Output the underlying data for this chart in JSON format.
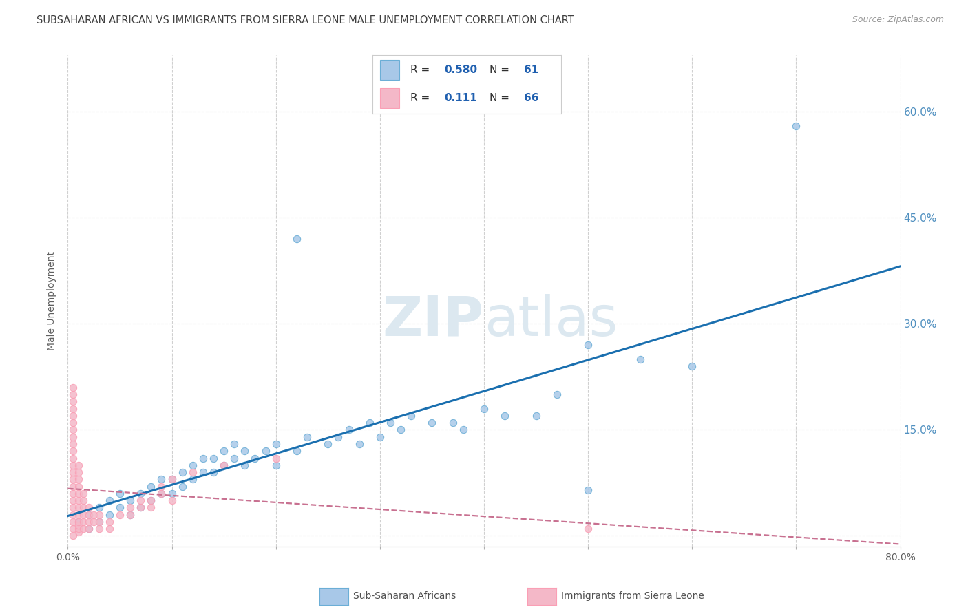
{
  "title": "SUBSAHARAN AFRICAN VS IMMIGRANTS FROM SIERRA LEONE MALE UNEMPLOYMENT CORRELATION CHART",
  "source": "Source: ZipAtlas.com",
  "ylabel": "Male Unemployment",
  "xlim": [
    0.0,
    0.8
  ],
  "ylim": [
    -0.015,
    0.68
  ],
  "yticks": [
    0.0,
    0.15,
    0.3,
    0.45,
    0.6
  ],
  "xticks": [
    0.0,
    0.1,
    0.2,
    0.3,
    0.4,
    0.5,
    0.6,
    0.7,
    0.8
  ],
  "blue_R": 0.58,
  "blue_N": 61,
  "pink_R": 0.111,
  "pink_N": 66,
  "blue_color": "#a8c8e8",
  "pink_color": "#f4b8c8",
  "blue_edge_color": "#6baed6",
  "pink_edge_color": "#fa9fb5",
  "blue_line_color": "#1a6faf",
  "pink_line_color": "#c87090",
  "watermark_color": "#dce8f0",
  "grid_color": "#d0d0d0",
  "background_color": "#ffffff",
  "title_color": "#404040",
  "right_tick_color": "#5090c0",
  "legend_text_dark": "#303030",
  "legend_text_blue": "#2060b0",
  "blue_scatter": [
    [
      0.01,
      0.02
    ],
    [
      0.02,
      0.01
    ],
    [
      0.02,
      0.03
    ],
    [
      0.03,
      0.02
    ],
    [
      0.03,
      0.04
    ],
    [
      0.04,
      0.03
    ],
    [
      0.04,
      0.05
    ],
    [
      0.05,
      0.04
    ],
    [
      0.05,
      0.06
    ],
    [
      0.06,
      0.03
    ],
    [
      0.06,
      0.05
    ],
    [
      0.07,
      0.04
    ],
    [
      0.07,
      0.06
    ],
    [
      0.08,
      0.05
    ],
    [
      0.08,
      0.07
    ],
    [
      0.09,
      0.06
    ],
    [
      0.09,
      0.08
    ],
    [
      0.1,
      0.06
    ],
    [
      0.1,
      0.08
    ],
    [
      0.11,
      0.07
    ],
    [
      0.11,
      0.09
    ],
    [
      0.12,
      0.08
    ],
    [
      0.12,
      0.1
    ],
    [
      0.13,
      0.09
    ],
    [
      0.13,
      0.11
    ],
    [
      0.14,
      0.09
    ],
    [
      0.14,
      0.11
    ],
    [
      0.15,
      0.1
    ],
    [
      0.15,
      0.12
    ],
    [
      0.16,
      0.11
    ],
    [
      0.16,
      0.13
    ],
    [
      0.17,
      0.1
    ],
    [
      0.17,
      0.12
    ],
    [
      0.18,
      0.11
    ],
    [
      0.19,
      0.12
    ],
    [
      0.2,
      0.1
    ],
    [
      0.2,
      0.13
    ],
    [
      0.22,
      0.12
    ],
    [
      0.23,
      0.14
    ],
    [
      0.25,
      0.13
    ],
    [
      0.26,
      0.14
    ],
    [
      0.27,
      0.15
    ],
    [
      0.28,
      0.13
    ],
    [
      0.29,
      0.16
    ],
    [
      0.3,
      0.14
    ],
    [
      0.31,
      0.16
    ],
    [
      0.32,
      0.15
    ],
    [
      0.33,
      0.17
    ],
    [
      0.35,
      0.16
    ],
    [
      0.37,
      0.16
    ],
    [
      0.38,
      0.15
    ],
    [
      0.4,
      0.18
    ],
    [
      0.42,
      0.17
    ],
    [
      0.45,
      0.17
    ],
    [
      0.47,
      0.2
    ],
    [
      0.5,
      0.065
    ],
    [
      0.5,
      0.27
    ],
    [
      0.55,
      0.25
    ],
    [
      0.6,
      0.24
    ],
    [
      0.22,
      0.42
    ],
    [
      0.7,
      0.58
    ]
  ],
  "pink_scatter": [
    [
      0.005,
      0.01
    ],
    [
      0.005,
      0.02
    ],
    [
      0.005,
      0.03
    ],
    [
      0.005,
      0.04
    ],
    [
      0.005,
      0.05
    ],
    [
      0.005,
      0.06
    ],
    [
      0.005,
      0.07
    ],
    [
      0.005,
      0.08
    ],
    [
      0.005,
      0.09
    ],
    [
      0.005,
      0.1
    ],
    [
      0.005,
      0.11
    ],
    [
      0.005,
      0.12
    ],
    [
      0.005,
      0.13
    ],
    [
      0.005,
      0.14
    ],
    [
      0.005,
      0.15
    ],
    [
      0.005,
      0.16
    ],
    [
      0.005,
      0.17
    ],
    [
      0.005,
      0.18
    ],
    [
      0.005,
      0.19
    ],
    [
      0.005,
      0.2
    ],
    [
      0.005,
      0.21
    ],
    [
      0.01,
      0.005
    ],
    [
      0.01,
      0.01
    ],
    [
      0.01,
      0.015
    ],
    [
      0.01,
      0.02
    ],
    [
      0.01,
      0.03
    ],
    [
      0.01,
      0.04
    ],
    [
      0.01,
      0.05
    ],
    [
      0.01,
      0.06
    ],
    [
      0.01,
      0.07
    ],
    [
      0.01,
      0.08
    ],
    [
      0.01,
      0.09
    ],
    [
      0.01,
      0.1
    ],
    [
      0.015,
      0.01
    ],
    [
      0.015,
      0.02
    ],
    [
      0.015,
      0.03
    ],
    [
      0.015,
      0.04
    ],
    [
      0.015,
      0.05
    ],
    [
      0.015,
      0.06
    ],
    [
      0.02,
      0.01
    ],
    [
      0.02,
      0.02
    ],
    [
      0.02,
      0.03
    ],
    [
      0.02,
      0.04
    ],
    [
      0.025,
      0.02
    ],
    [
      0.025,
      0.03
    ],
    [
      0.03,
      0.02
    ],
    [
      0.03,
      0.03
    ],
    [
      0.04,
      0.02
    ],
    [
      0.05,
      0.03
    ],
    [
      0.06,
      0.04
    ],
    [
      0.07,
      0.04
    ],
    [
      0.08,
      0.05
    ],
    [
      0.09,
      0.07
    ],
    [
      0.1,
      0.08
    ],
    [
      0.12,
      0.09
    ],
    [
      0.15,
      0.1
    ],
    [
      0.2,
      0.11
    ],
    [
      0.005,
      0.0
    ],
    [
      0.5,
      0.01
    ],
    [
      0.03,
      0.01
    ],
    [
      0.04,
      0.01
    ],
    [
      0.06,
      0.03
    ],
    [
      0.07,
      0.05
    ],
    [
      0.08,
      0.04
    ],
    [
      0.09,
      0.06
    ],
    [
      0.1,
      0.05
    ]
  ]
}
